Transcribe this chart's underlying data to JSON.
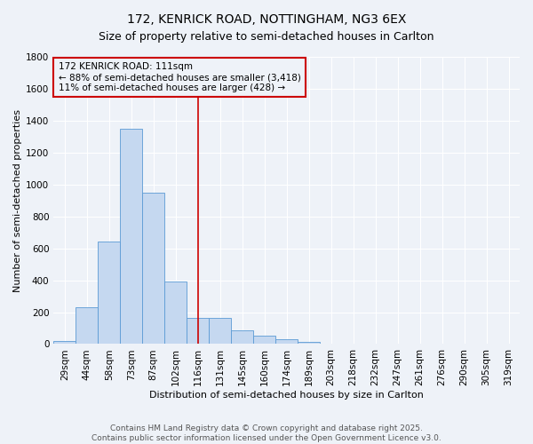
{
  "title": "172, KENRICK ROAD, NOTTINGHAM, NG3 6EX",
  "subtitle": "Size of property relative to semi-detached houses in Carlton",
  "xlabel": "Distribution of semi-detached houses by size in Carlton",
  "ylabel": "Number of semi-detached properties",
  "bar_labels": [
    "29sqm",
    "44sqm",
    "58sqm",
    "73sqm",
    "87sqm",
    "102sqm",
    "116sqm",
    "131sqm",
    "145sqm",
    "160sqm",
    "174sqm",
    "189sqm",
    "203sqm",
    "218sqm",
    "232sqm",
    "247sqm",
    "261sqm",
    "276sqm",
    "290sqm",
    "305sqm",
    "319sqm"
  ],
  "bar_values": [
    20,
    230,
    640,
    1350,
    950,
    390,
    165,
    165,
    85,
    50,
    30,
    15,
    5,
    0,
    0,
    0,
    0,
    0,
    0,
    0,
    0
  ],
  "bar_color": "#c5d8f0",
  "bar_edge_color": "#5b9bd5",
  "property_line_index": 6,
  "property_line_color": "#cc0000",
  "annotation_line1": "172 KENRICK ROAD: 111sqm",
  "annotation_line2": "← 88% of semi-detached houses are smaller (3,418)",
  "annotation_line3": "11% of semi-detached houses are larger (428) →",
  "annotation_box_color": "#cc0000",
  "ylim": [
    0,
    1800
  ],
  "yticks": [
    0,
    200,
    400,
    600,
    800,
    1000,
    1200,
    1400,
    1600,
    1800
  ],
  "footer_line1": "Contains HM Land Registry data © Crown copyright and database right 2025.",
  "footer_line2": "Contains public sector information licensed under the Open Government Licence v3.0.",
  "background_color": "#eef2f8",
  "grid_color": "#ffffff",
  "title_fontsize": 10,
  "subtitle_fontsize": 9,
  "axis_label_fontsize": 8,
  "tick_fontsize": 7.5,
  "footer_fontsize": 6.5,
  "annotation_fontsize": 7.5
}
